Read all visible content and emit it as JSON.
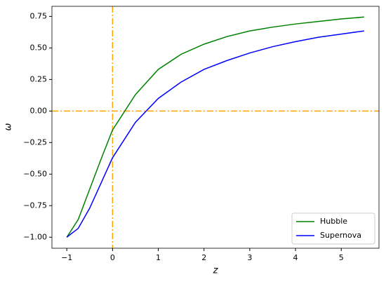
{
  "chart_data": {
    "type": "line",
    "x_label": "z",
    "y_label": "ω",
    "x": [
      -1,
      -0.75,
      -0.5,
      -0.25,
      0,
      0.5,
      1,
      1.5,
      2,
      2.5,
      3,
      3.5,
      4,
      4.5,
      5,
      5.5
    ],
    "series": [
      {
        "name": "Hubble",
        "color": "#008000",
        "values": [
          -1,
          -0.86,
          -0.62,
          -0.38,
          -0.15,
          0.13,
          0.33,
          0.45,
          0.53,
          0.59,
          0.635,
          0.665,
          0.69,
          0.71,
          0.73,
          0.745
        ]
      },
      {
        "name": "Supernova",
        "color": "#0000ff",
        "values": [
          -1,
          -0.93,
          -0.77,
          -0.57,
          -0.37,
          -0.09,
          0.1,
          0.23,
          0.33,
          0.4,
          0.46,
          0.51,
          0.55,
          0.585,
          0.61,
          0.635
        ]
      }
    ],
    "reference_lines": {
      "x": 0,
      "y": 0,
      "color": "#ffa500"
    },
    "xlim": [
      -1.325,
      5.825
    ],
    "ylim": [
      -1.0875,
      0.83
    ],
    "xticks": [
      {
        "value": -1,
        "label": "−1"
      },
      0,
      1,
      2,
      3,
      4,
      5
    ],
    "yticks": [
      {
        "value": -1,
        "label": "−1.00"
      },
      {
        "value": -0.75,
        "label": "−0.75"
      },
      {
        "value": -0.5,
        "label": "−0.50"
      },
      {
        "value": -0.25,
        "label": "−0.25"
      },
      {
        "value": 0,
        "label": "0.00"
      },
      {
        "value": 0.25,
        "label": "0.25"
      },
      {
        "value": 0.5,
        "label": "0.50"
      },
      {
        "value": 0.75,
        "label": "0.75"
      }
    ],
    "legend": "lower right"
  }
}
